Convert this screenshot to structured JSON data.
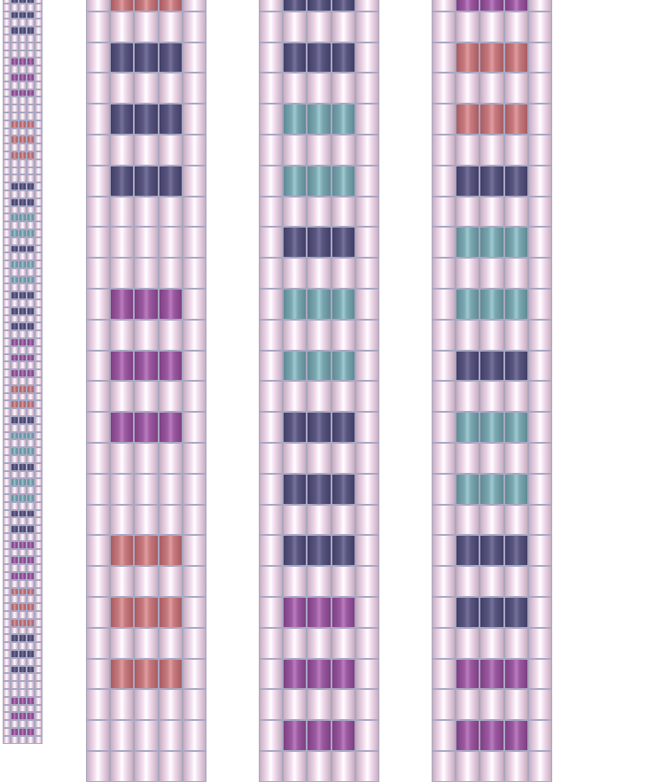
{
  "pattern": {
    "colors": {
      "b": "#f3dff0",
      "n": "#58557e",
      "t": "#7ba7b1",
      "p": "#9b59a0",
      "r": "#c67a7e"
    },
    "sequence": [
      "n",
      "n",
      "n",
      "_",
      "p",
      "p",
      "p",
      "_",
      "r",
      "r",
      "r",
      "_",
      "n",
      "n",
      "t",
      "t",
      "n",
      "t",
      "t",
      "n",
      "n",
      "n",
      "p",
      "p",
      "p",
      "r",
      "r",
      "n",
      "t",
      "t",
      "n",
      "t",
      "t",
      "n",
      "n",
      "p",
      "p",
      "p",
      "r",
      "r",
      "r"
    ],
    "strips": [
      {
        "name": "strip-thumbnail",
        "start": 0
      },
      {
        "name": "strip-1",
        "start": -1
      },
      {
        "name": "strip-2",
        "start": 12
      },
      {
        "name": "strip-3",
        "start": 24
      }
    ]
  }
}
